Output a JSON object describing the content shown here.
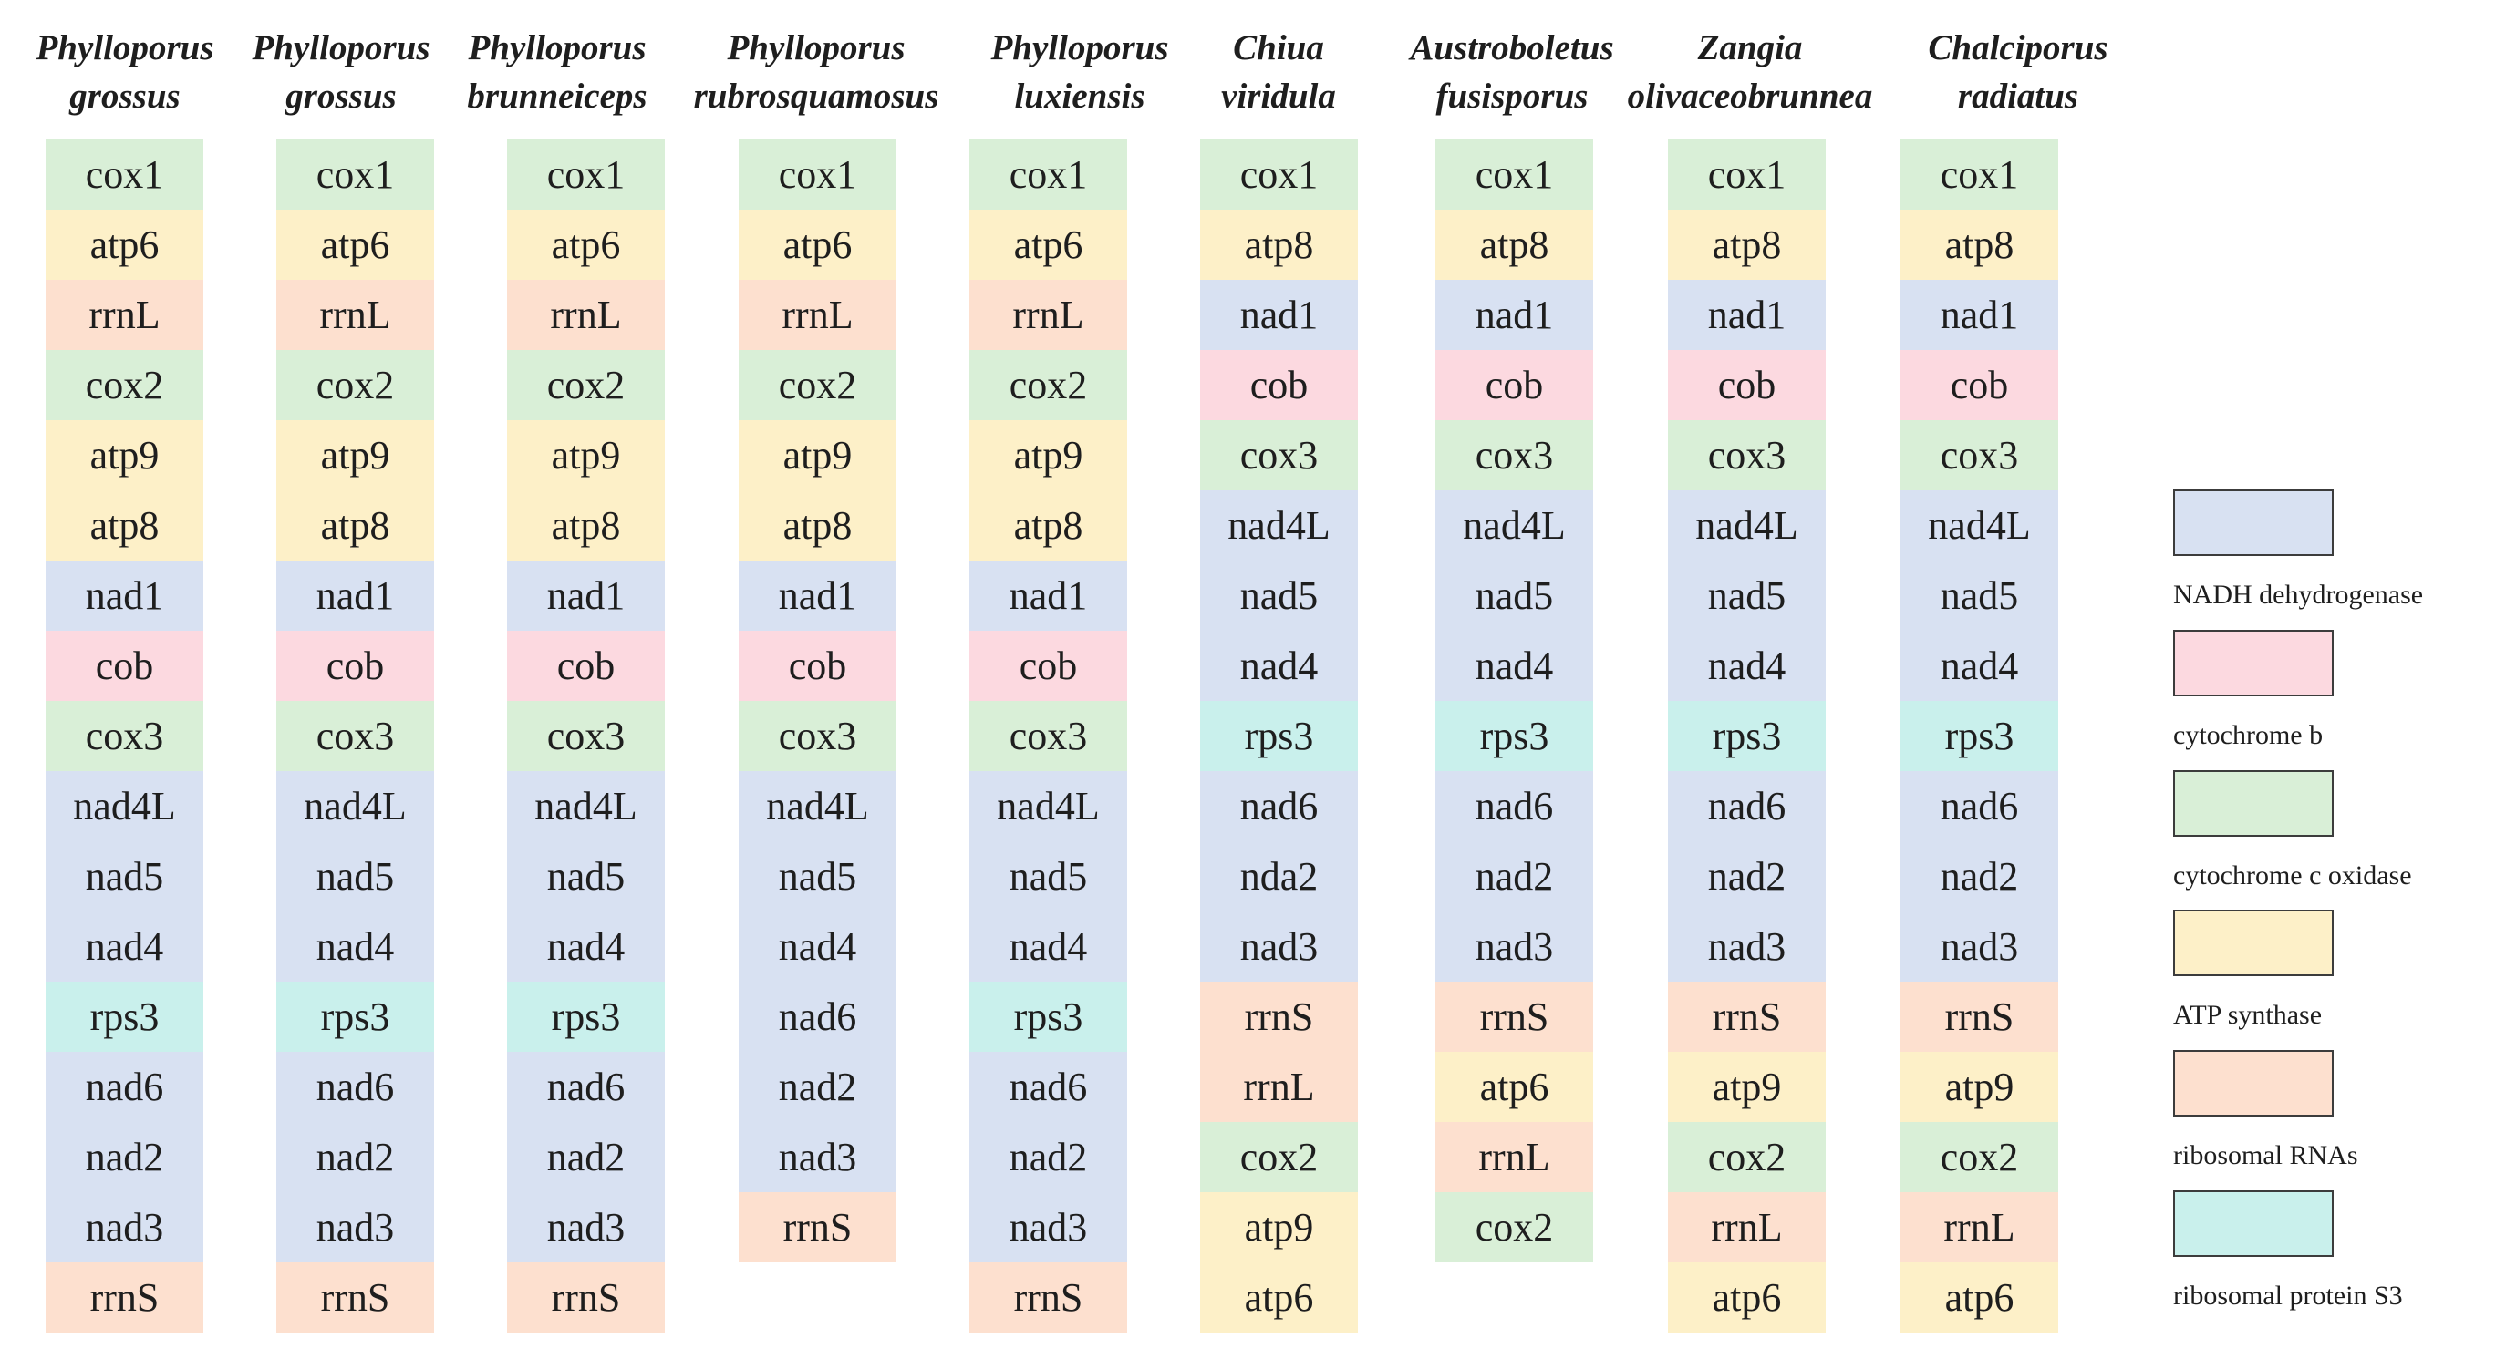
{
  "colors": {
    "nadh": "#d8e1f2",
    "cytb": "#fcd9e0",
    "cox": "#d9efd7",
    "atp": "#fdf0c8",
    "rrna": "#fde0cf",
    "rps": "#c9f0ec"
  },
  "columns": [
    {
      "genus": "Phylloporus",
      "species": "grossus",
      "genes": [
        "cox1",
        "atp6",
        "rrnL",
        "cox2",
        "atp9",
        "atp8",
        "nad1",
        "cob",
        "cox3",
        "nad4L",
        "nad5",
        "nad4",
        "rps3",
        "nad6",
        "nad2",
        "nad3",
        "rrnS"
      ],
      "types": [
        "cox",
        "atp",
        "rrna",
        "cox",
        "atp",
        "atp",
        "nadh",
        "cytb",
        "cox",
        "nadh",
        "nadh",
        "nadh",
        "rps",
        "nadh",
        "nadh",
        "nadh",
        "rrna"
      ]
    },
    {
      "genus": "Phylloporus",
      "species": "grossus",
      "genes": [
        "cox1",
        "atp6",
        "rrnL",
        "cox2",
        "atp9",
        "atp8",
        "nad1",
        "cob",
        "cox3",
        "nad4L",
        "nad5",
        "nad4",
        "rps3",
        "nad6",
        "nad2",
        "nad3",
        "rrnS"
      ],
      "types": [
        "cox",
        "atp",
        "rrna",
        "cox",
        "atp",
        "atp",
        "nadh",
        "cytb",
        "cox",
        "nadh",
        "nadh",
        "nadh",
        "rps",
        "nadh",
        "nadh",
        "nadh",
        "rrna"
      ]
    },
    {
      "genus": "Phylloporus",
      "species": "brunneiceps",
      "genes": [
        "cox1",
        "atp6",
        "rrnL",
        "cox2",
        "atp9",
        "atp8",
        "nad1",
        "cob",
        "cox3",
        "nad4L",
        "nad5",
        "nad4",
        "rps3",
        "nad6",
        "nad2",
        "nad3",
        "rrnS"
      ],
      "types": [
        "cox",
        "atp",
        "rrna",
        "cox",
        "atp",
        "atp",
        "nadh",
        "cytb",
        "cox",
        "nadh",
        "nadh",
        "nadh",
        "rps",
        "nadh",
        "nadh",
        "nadh",
        "rrna"
      ]
    },
    {
      "genus": "Phylloporus",
      "species": "rubrosquamosus",
      "genes": [
        "cox1",
        "atp6",
        "rrnL",
        "cox2",
        "atp9",
        "atp8",
        "nad1",
        "cob",
        "cox3",
        "nad4L",
        "nad5",
        "nad4",
        "nad6",
        "nad2",
        "nad3",
        "rrnS"
      ],
      "types": [
        "cox",
        "atp",
        "rrna",
        "cox",
        "atp",
        "atp",
        "nadh",
        "cytb",
        "cox",
        "nadh",
        "nadh",
        "nadh",
        "nadh",
        "nadh",
        "nadh",
        "rrna"
      ]
    },
    {
      "genus": "Phylloporus",
      "species": "luxiensis",
      "genes": [
        "cox1",
        "atp6",
        "rrnL",
        "cox2",
        "atp9",
        "atp8",
        "nad1",
        "cob",
        "cox3",
        "nad4L",
        "nad5",
        "nad4",
        "rps3",
        "nad6",
        "nad2",
        "nad3",
        "rrnS"
      ],
      "types": [
        "cox",
        "atp",
        "rrna",
        "cox",
        "atp",
        "atp",
        "nadh",
        "cytb",
        "cox",
        "nadh",
        "nadh",
        "nadh",
        "rps",
        "nadh",
        "nadh",
        "nadh",
        "rrna"
      ]
    },
    {
      "genus": "Chiua",
      "species": "viridula",
      "genes": [
        "cox1",
        "atp8",
        "nad1",
        "cob",
        "cox3",
        "nad4L",
        "nad5",
        "nad4",
        "rps3",
        "nad6",
        "nda2",
        "nad3",
        "rrnS",
        "rrnL",
        "cox2",
        "atp9",
        "atp6"
      ],
      "types": [
        "cox",
        "atp",
        "nadh",
        "cytb",
        "cox",
        "nadh",
        "nadh",
        "nadh",
        "rps",
        "nadh",
        "nadh",
        "nadh",
        "rrna",
        "rrna",
        "cox",
        "atp",
        "atp"
      ]
    },
    {
      "genus": "Austroboletus",
      "species": "fusisporus",
      "genes": [
        "cox1",
        "atp8",
        "nad1",
        "cob",
        "cox3",
        "nad4L",
        "nad5",
        "nad4",
        "rps3",
        "nad6",
        "nad2",
        "nad3",
        "rrnS",
        "atp6",
        "rrnL",
        "cox2"
      ],
      "types": [
        "cox",
        "atp",
        "nadh",
        "cytb",
        "cox",
        "nadh",
        "nadh",
        "nadh",
        "rps",
        "nadh",
        "nadh",
        "nadh",
        "rrna",
        "atp",
        "rrna",
        "cox"
      ]
    },
    {
      "genus": "Zangia",
      "species": "olivaceobrunnea",
      "genes": [
        "cox1",
        "atp8",
        "nad1",
        "cob",
        "cox3",
        "nad4L",
        "nad5",
        "nad4",
        "rps3",
        "nad6",
        "nad2",
        "nad3",
        "rrnS",
        "atp9",
        "cox2",
        "rrnL",
        "atp6"
      ],
      "types": [
        "cox",
        "atp",
        "nadh",
        "cytb",
        "cox",
        "nadh",
        "nadh",
        "nadh",
        "rps",
        "nadh",
        "nadh",
        "nadh",
        "rrna",
        "atp",
        "cox",
        "rrna",
        "atp"
      ]
    },
    {
      "genus": "Chalciporus",
      "species": "radiatus",
      "genes": [
        "cox1",
        "atp8",
        "nad1",
        "cob",
        "cox3",
        "nad4L",
        "nad5",
        "nad4",
        "rps3",
        "nad6",
        "nad2",
        "nad3",
        "rrnS",
        "atp9",
        "cox2",
        "rrnL",
        "atp6"
      ],
      "types": [
        "cox",
        "atp",
        "nadh",
        "cytb",
        "cox",
        "nadh",
        "nadh",
        "nadh",
        "rps",
        "nadh",
        "nadh",
        "nadh",
        "rrna",
        "atp",
        "cox",
        "rrna",
        "atp"
      ]
    }
  ],
  "legend": [
    {
      "type": "nadh",
      "label": "NADH dehydrogenase"
    },
    {
      "type": "cytb",
      "label": "cytochrome b"
    },
    {
      "type": "cox",
      "label": "cytochrome c oxidase"
    },
    {
      "type": "atp",
      "label": "ATP synthase"
    },
    {
      "type": "rrna",
      "label": "ribosomal RNAs"
    },
    {
      "type": "rps",
      "label": "ribosomal protein S3"
    }
  ]
}
